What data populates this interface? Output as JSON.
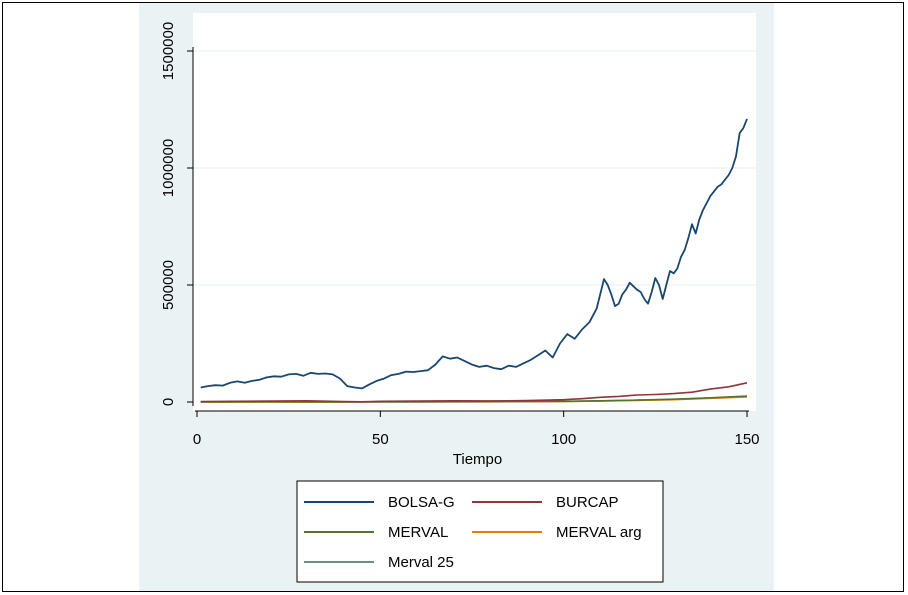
{
  "chart_data": {
    "type": "line",
    "xlabel": "Tiempo",
    "ylabel": "",
    "xlim": [
      0,
      150
    ],
    "ylim": [
      0,
      1500000
    ],
    "xticks": [
      0,
      50,
      100,
      150
    ],
    "yticks": [
      0,
      500000,
      1000000,
      1500000
    ],
    "ytick_labels": [
      "0",
      "500000",
      "1000000",
      "1500000"
    ],
    "grid": true,
    "legend_position": "bottom",
    "series": [
      {
        "name": "BOLSA-G",
        "color": "#1a476f",
        "x": [
          1,
          3,
          5,
          7,
          9,
          11,
          13,
          15,
          17,
          19,
          21,
          23,
          25,
          27,
          29,
          31,
          33,
          35,
          37,
          39,
          41,
          43,
          45,
          47,
          49,
          51,
          53,
          55,
          57,
          59,
          61,
          63,
          65,
          67,
          69,
          71,
          73,
          75,
          77,
          79,
          81,
          83,
          85,
          87,
          89,
          91,
          93,
          95,
          97,
          99,
          101,
          103,
          105,
          107,
          109,
          111,
          112,
          113,
          114,
          115,
          116,
          117,
          118,
          119,
          120,
          121,
          122,
          123,
          124,
          125,
          126,
          127,
          128,
          129,
          130,
          131,
          132,
          133,
          134,
          135,
          136,
          137,
          138,
          139,
          140,
          141,
          142,
          143,
          144,
          145,
          146,
          147,
          148,
          149,
          150
        ],
        "y": [
          62000,
          68000,
          72000,
          70000,
          82000,
          88000,
          82000,
          90000,
          95000,
          105000,
          110000,
          108000,
          118000,
          120000,
          112000,
          125000,
          120000,
          122000,
          118000,
          100000,
          68000,
          62000,
          58000,
          75000,
          90000,
          100000,
          115000,
          120000,
          130000,
          128000,
          132000,
          136000,
          160000,
          195000,
          185000,
          190000,
          175000,
          160000,
          150000,
          155000,
          145000,
          140000,
          155000,
          150000,
          165000,
          180000,
          200000,
          220000,
          190000,
          250000,
          290000,
          270000,
          310000,
          340000,
          400000,
          525000,
          500000,
          460000,
          410000,
          420000,
          460000,
          480000,
          510000,
          495000,
          480000,
          470000,
          440000,
          420000,
          470000,
          530000,
          500000,
          440000,
          500000,
          560000,
          550000,
          570000,
          620000,
          650000,
          700000,
          760000,
          720000,
          780000,
          820000,
          850000,
          880000,
          900000,
          920000,
          930000,
          950000,
          970000,
          1000000,
          1050000,
          1150000,
          1170000,
          1210000
        ]
      },
      {
        "name": "BURCAP",
        "color": "#90353b",
        "x": [
          1,
          10,
          20,
          30,
          40,
          45,
          50,
          60,
          70,
          80,
          90,
          100,
          105,
          110,
          115,
          120,
          125,
          130,
          135,
          140,
          145,
          150
        ],
        "y": [
          2000,
          3000,
          4000,
          5000,
          2000,
          1000,
          3000,
          4000,
          5000,
          4500,
          6000,
          10000,
          14000,
          20000,
          24000,
          30000,
          32000,
          36000,
          42000,
          55000,
          65000,
          82000
        ]
      },
      {
        "name": "MERVAL",
        "color": "#55752f",
        "x": [
          1,
          20,
          40,
          60,
          80,
          100,
          110,
          120,
          130,
          140,
          150
        ],
        "y": [
          500,
          800,
          600,
          1000,
          1500,
          3000,
          5000,
          8000,
          12000,
          18000,
          25000
        ]
      },
      {
        "name": "MERVAL arg",
        "color": "#e37e00",
        "x": [
          1,
          20,
          40,
          60,
          80,
          100,
          110,
          120,
          130,
          140,
          150
        ],
        "y": [
          300,
          500,
          400,
          700,
          1000,
          2000,
          4000,
          7000,
          10000,
          16000,
          22000
        ]
      },
      {
        "name": "Merval 25",
        "color": "#6e8e84",
        "x": [
          1,
          20,
          40,
          60,
          80,
          100,
          110,
          120,
          130,
          140,
          150
        ],
        "y": [
          400,
          700,
          500,
          900,
          1300,
          2500,
          4500,
          7500,
          11000,
          17000,
          24000
        ]
      }
    ]
  }
}
